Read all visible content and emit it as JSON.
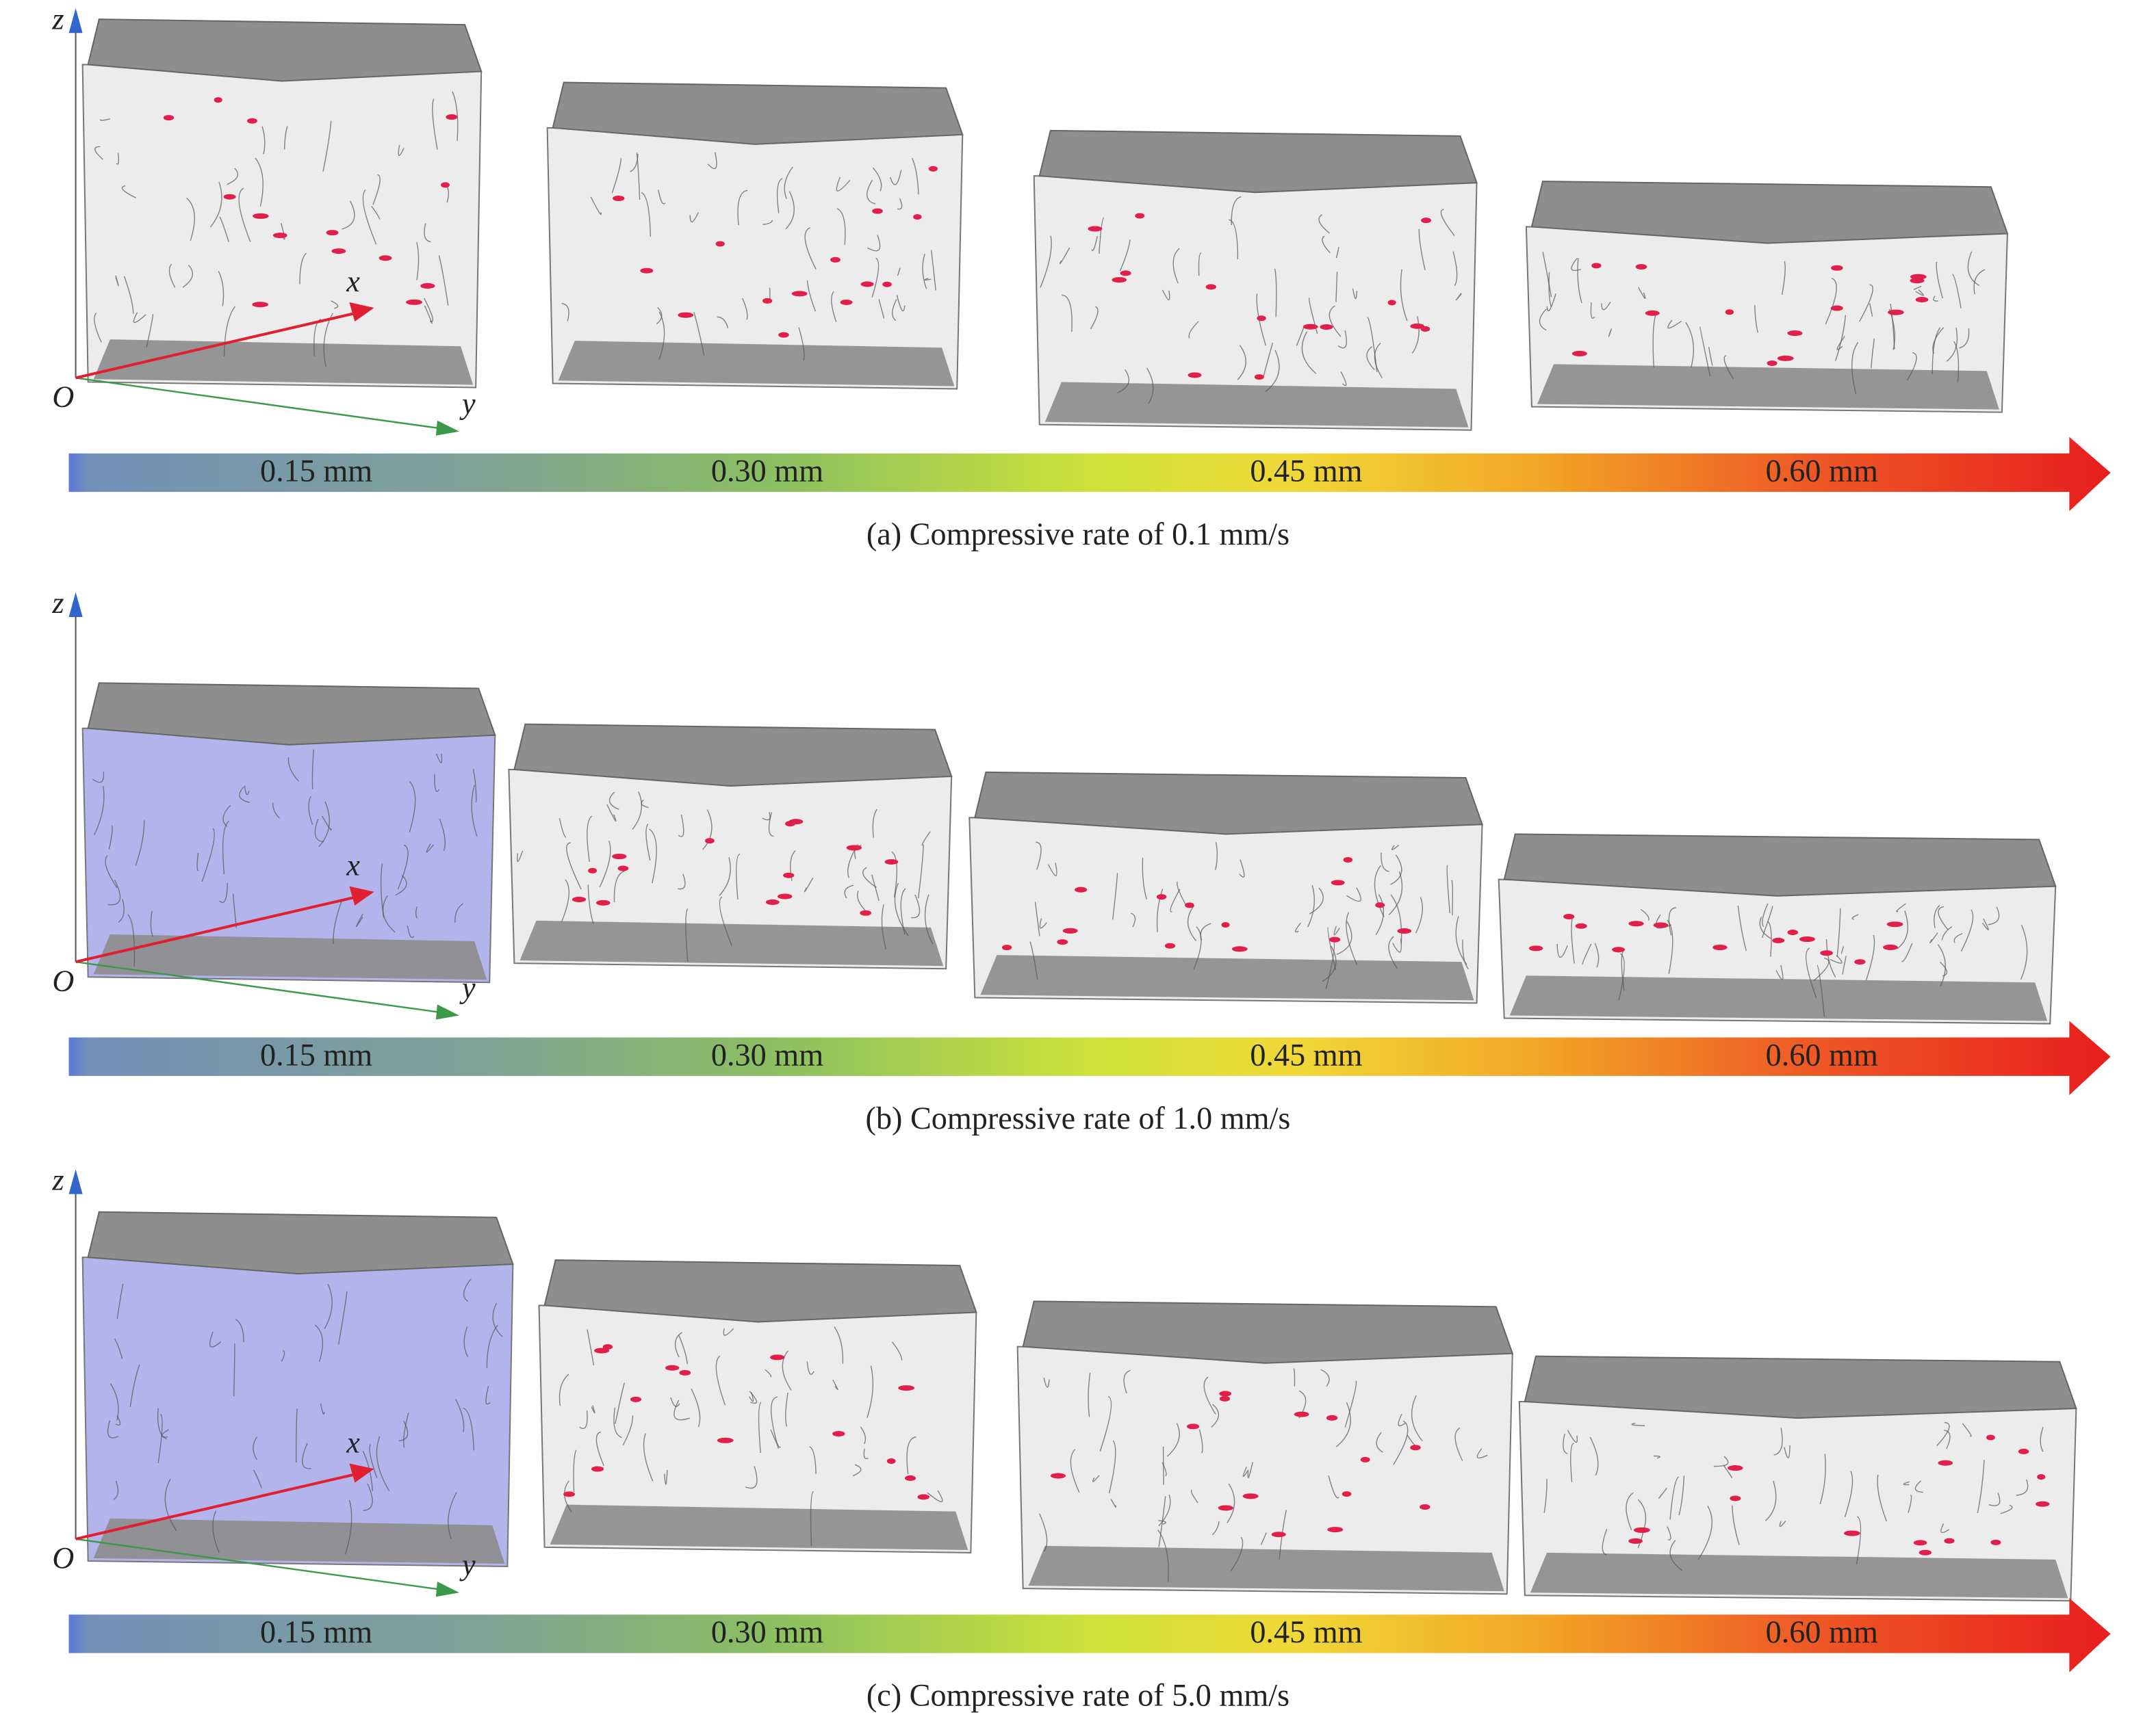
{
  "panels": [
    {
      "caption": "(a) Compressive rate of 0.1 mm/s",
      "axes": {
        "z": "z",
        "x": "x",
        "y": "y",
        "origin": "O"
      },
      "bar_labels": [
        "0.15 mm",
        "0.30 mm",
        "0.45 mm",
        "0.60 mm"
      ]
    },
    {
      "caption": "(b) Compressive rate of 1.0 mm/s",
      "axes": {
        "z": "z",
        "x": "x",
        "y": "y",
        "origin": "O"
      },
      "bar_labels": [
        "0.15 mm",
        "0.30 mm",
        "0.45 mm",
        "0.60 mm"
      ]
    },
    {
      "caption": "(c) Compressive rate of 5.0 mm/s",
      "axes": {
        "z": "z",
        "x": "x",
        "y": "y",
        "origin": "O"
      },
      "bar_labels": [
        "0.15 mm",
        "0.30 mm",
        "0.45 mm",
        "0.60 mm"
      ]
    }
  ]
}
